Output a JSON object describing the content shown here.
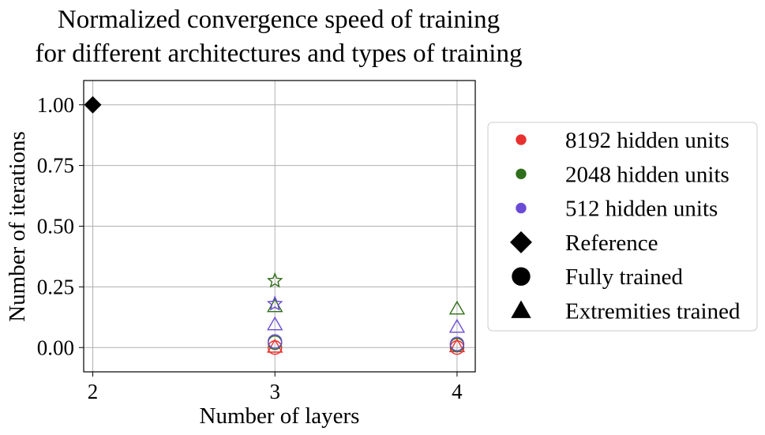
{
  "chart_data": {
    "type": "scatter",
    "title_lines": [
      "Normalized convergence speed of training",
      "for different architectures and types of training"
    ],
    "xlabel": "Number of layers",
    "ylabel": "Number of iterations",
    "xlim": [
      1.95,
      4.1
    ],
    "ylim": [
      -0.1,
      1.1
    ],
    "xticks": [
      2,
      3,
      4
    ],
    "xtick_labels": [
      "2",
      "3",
      "4"
    ],
    "yticks": [
      0.0,
      0.25,
      0.5,
      0.75,
      1.0
    ],
    "ytick_labels": [
      "0.00",
      "0.25",
      "0.50",
      "0.75",
      "1.00"
    ],
    "grid": true,
    "legend_position": "right, outside plot",
    "colors": {
      "8192 hidden units": "#e8312f",
      "2048 hidden units": "#2f6e1a",
      "512 hidden units": "#6a4bd6",
      "reference": "#000000"
    },
    "legend": [
      {
        "label": "8192 hidden units",
        "marker": "dot",
        "color": "#e8312f"
      },
      {
        "label": "2048 hidden units",
        "marker": "dot",
        "color": "#2f6e1a"
      },
      {
        "label": "512 hidden units",
        "marker": "dot",
        "color": "#6a4bd6"
      },
      {
        "label": "Reference",
        "marker": "diamond",
        "color": "#000000"
      },
      {
        "label": "Fully trained",
        "marker": "circle",
        "color": "#000000"
      },
      {
        "label": "Extremities trained",
        "marker": "triangle",
        "color": "#000000"
      }
    ],
    "points": [
      {
        "x": 2,
        "y": 1.0,
        "marker": "diamond",
        "color": "#000000",
        "filled": true
      },
      {
        "x": 3,
        "y": 0.0,
        "marker": "circle",
        "color": "#e8312f",
        "filled": false
      },
      {
        "x": 3,
        "y": 0.003,
        "marker": "triangle",
        "color": "#e8312f",
        "filled": false
      },
      {
        "x": 3,
        "y": 0.02,
        "marker": "circle",
        "color": "#2f6e1a",
        "filled": false
      },
      {
        "x": 3,
        "y": 0.17,
        "marker": "triangle",
        "color": "#2f6e1a",
        "filled": false
      },
      {
        "x": 3,
        "y": 0.275,
        "marker": "star",
        "color": "#2f6e1a",
        "filled": false
      },
      {
        "x": 3,
        "y": 0.025,
        "marker": "circle",
        "color": "#6a4bd6",
        "filled": false
      },
      {
        "x": 3,
        "y": 0.095,
        "marker": "triangle",
        "color": "#6a4bd6",
        "filled": false
      },
      {
        "x": 3,
        "y": 0.18,
        "marker": "star",
        "color": "#6a4bd6",
        "filled": false
      },
      {
        "x": 4,
        "y": 0.0,
        "marker": "circle",
        "color": "#e8312f",
        "filled": false
      },
      {
        "x": 4,
        "y": 0.005,
        "marker": "triangle",
        "color": "#e8312f",
        "filled": false
      },
      {
        "x": 4,
        "y": 0.01,
        "marker": "circle",
        "color": "#2f6e1a",
        "filled": false
      },
      {
        "x": 4,
        "y": 0.16,
        "marker": "triangle",
        "color": "#2f6e1a",
        "filled": false
      },
      {
        "x": 4,
        "y": 0.015,
        "marker": "circle",
        "color": "#6a4bd6",
        "filled": false
      },
      {
        "x": 4,
        "y": 0.085,
        "marker": "triangle",
        "color": "#6a4bd6",
        "filled": false
      }
    ]
  }
}
